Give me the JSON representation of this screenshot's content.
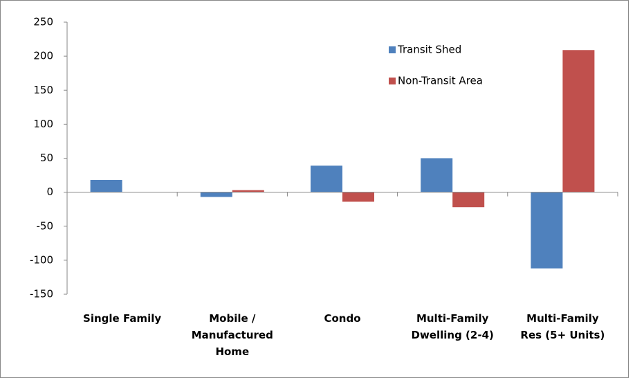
{
  "chart_data": {
    "type": "bar",
    "categories": [
      "Single Family",
      "Mobile / Manufactured Home",
      "Condo",
      "Multi-Family Dwelling (2-4)",
      "Multi-Family Res (5+ Units)"
    ],
    "series": [
      {
        "name": "Transit Shed",
        "color": "#4f81bd",
        "values": [
          18,
          -7,
          39,
          50,
          -112
        ]
      },
      {
        "name": "Non-Transit Area",
        "color": "#c0504d",
        "values": [
          0,
          3,
          -14,
          -22,
          209
        ]
      }
    ],
    "ylim": [
      -150,
      250
    ],
    "yticks": [
      -150,
      -100,
      -50,
      0,
      50,
      100,
      150,
      200,
      250
    ],
    "grid": false,
    "legend": "upper right"
  }
}
